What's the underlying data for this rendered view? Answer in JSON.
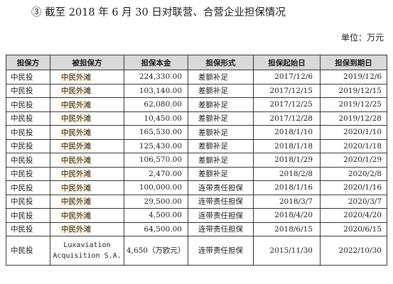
{
  "heading": "③ 截至 2018 年 6 月 30 日对联营、合营企业担保情况",
  "unit": "单位：万元",
  "table": {
    "headers": [
      "担保方",
      "被担保方",
      "担保本金",
      "担保形式",
      "担保起始日",
      "担保到期日"
    ],
    "rows": [
      [
        "中民投",
        "中民外滩",
        "224,330.00",
        "差额补足",
        "2017/12/6",
        "2019/12/6"
      ],
      [
        "中民投",
        "中民外滩",
        "103,140.00",
        "差额补足",
        "2017/12/15",
        "2019/12/15"
      ],
      [
        "中民投",
        "中民外滩",
        "62,080.00",
        "差额补足",
        "2017/12/25",
        "2019/12/25"
      ],
      [
        "中民投",
        "中民外滩",
        "10,450.00",
        "差额补足",
        "2017/12/28",
        "2019/12/28"
      ],
      [
        "中民投",
        "中民外滩",
        "165,530.00",
        "差额补足",
        "2018/1/10",
        "2020/1/10"
      ],
      [
        "中民投",
        "中民外滩",
        "125,430.00",
        "差额补足",
        "2018/1/18",
        "2020/1/18"
      ],
      [
        "中民投",
        "中民外滩",
        "106,570.00",
        "差额补足",
        "2018/1/29",
        "2020/1/29"
      ],
      [
        "中民投",
        "中民外滩",
        "2,470.00",
        "差额补足",
        "2018/2/8",
        "2020/2/8"
      ],
      [
        "中民投",
        "中民外滩",
        "100,000.00",
        "连带责任担保",
        "2018/1/16",
        "2020/1/16"
      ],
      [
        "中民投",
        "中民外滩",
        "29,500.00",
        "连带责任担保",
        "2018/3/7",
        "2020/3/7"
      ],
      [
        "中民投",
        "中民外滩",
        "4,500.00",
        "连带责任担保",
        "2018/4/20",
        "2020/4/20"
      ],
      [
        "中民投",
        "中民外滩",
        "64,500.00",
        "连带责任担保",
        "2018/6/15",
        "2020/6/15"
      ]
    ],
    "last_row": {
      "guarantor": "中民投",
      "guaranteed_line1": "Luxaviation",
      "guaranteed_line2": "Acquisition S.A.",
      "principal": "4,650（万欧元）",
      "form": "连带责任担保",
      "start": "2015/11/30",
      "end": "2022/10/30"
    }
  }
}
